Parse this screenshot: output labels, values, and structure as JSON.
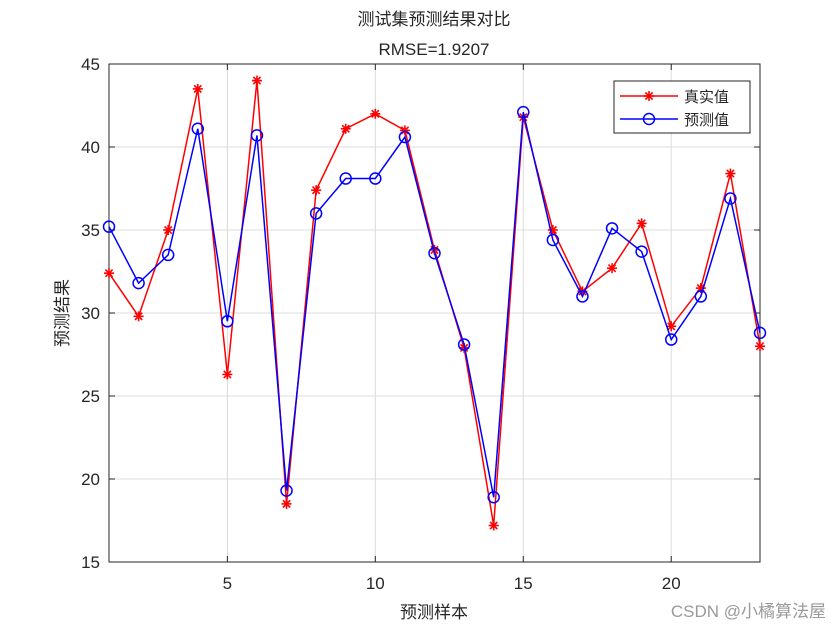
{
  "chart_data": {
    "type": "line",
    "title": "测试集预测结果对比",
    "subtitle": "RMSE=1.9207",
    "xlabel": "预测样本",
    "ylabel": "预测结果",
    "xlim": [
      1,
      23
    ],
    "ylim": [
      15,
      45
    ],
    "xticks": [
      5,
      10,
      15,
      20
    ],
    "yticks": [
      15,
      20,
      25,
      30,
      35,
      40,
      45
    ],
    "grid": true,
    "legend_position": "top-right",
    "x": [
      1,
      2,
      3,
      4,
      5,
      6,
      7,
      8,
      9,
      10,
      11,
      12,
      13,
      14,
      15,
      16,
      17,
      18,
      19,
      20,
      21,
      22,
      23
    ],
    "series": [
      {
        "name": "真实值",
        "color": "#ff0000",
        "marker": "asterisk",
        "values": [
          32.4,
          29.8,
          35.0,
          43.5,
          26.3,
          44.0,
          18.5,
          37.4,
          41.1,
          42.0,
          41.0,
          33.8,
          27.9,
          17.2,
          41.8,
          35.0,
          31.3,
          32.7,
          35.4,
          29.2,
          31.5,
          38.4,
          28.0
        ]
      },
      {
        "name": "预测值",
        "color": "#0000ff",
        "marker": "circle",
        "values": [
          35.2,
          31.8,
          33.5,
          41.1,
          29.5,
          40.7,
          19.3,
          36.0,
          38.1,
          38.1,
          40.6,
          33.6,
          28.1,
          18.9,
          42.1,
          34.4,
          31.0,
          35.1,
          33.7,
          28.4,
          31.0,
          36.9,
          28.8
        ]
      }
    ]
  },
  "watermark": "CSDN @小橘算法屋"
}
